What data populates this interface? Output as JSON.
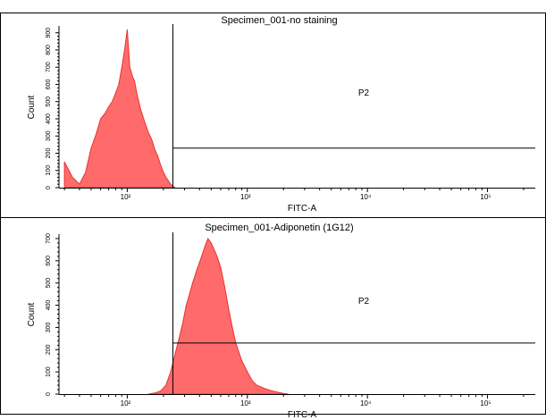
{
  "chart_data": [
    {
      "type": "area",
      "title": "Specimen_001-no staining",
      "xlabel": "FITC-A",
      "ylabel": "Count",
      "x_scale": "log",
      "xlim": [
        27,
        250000
      ],
      "ylim": [
        0,
        940
      ],
      "yticks": [
        0,
        100,
        200,
        300,
        400,
        500,
        600,
        700,
        800,
        900
      ],
      "xticks": [
        {
          "value": 100,
          "label": "10²"
        },
        {
          "value": 1000,
          "label": "10³"
        },
        {
          "value": 10000,
          "label": "10⁴"
        },
        {
          "value": 100000,
          "label": "10⁵"
        }
      ],
      "series": [
        {
          "x": [
            30,
            35,
            40,
            45,
            50,
            55,
            60,
            65,
            70,
            75,
            80,
            85,
            90,
            95,
            100,
            105,
            110,
            115,
            120,
            130,
            140,
            150,
            160,
            170,
            180,
            190,
            200,
            210,
            220,
            230,
            240,
            250
          ],
          "values": [
            150,
            60,
            20,
            90,
            230,
            310,
            400,
            430,
            470,
            500,
            550,
            600,
            700,
            800,
            920,
            700,
            650,
            620,
            550,
            450,
            380,
            320,
            280,
            220,
            180,
            130,
            90,
            60,
            40,
            20,
            8,
            0
          ],
          "color": "#ff6b6b"
        }
      ],
      "gate": {
        "name": "P2",
        "x_start": 240,
        "x_end": 250000,
        "y_level": 230
      }
    },
    {
      "type": "area",
      "title": "Specimen_001-Adiponetin (1G12)",
      "xlabel": "FITC-A",
      "ylabel": "Count",
      "x_scale": "log",
      "xlim": [
        27,
        250000
      ],
      "ylim": [
        0,
        720
      ],
      "yticks": [
        0,
        100,
        200,
        300,
        400,
        500,
        600,
        700
      ],
      "xticks": [
        {
          "value": 100,
          "label": "10²"
        },
        {
          "value": 1000,
          "label": "10³"
        },
        {
          "value": 10000,
          "label": "10⁴"
        },
        {
          "value": 100000,
          "label": "10⁵"
        }
      ],
      "series": [
        {
          "x": [
            150,
            170,
            190,
            210,
            230,
            250,
            270,
            290,
            310,
            330,
            350,
            380,
            410,
            440,
            470,
            500,
            530,
            560,
            600,
            650,
            700,
            750,
            800,
            900,
            1000,
            1100,
            1200,
            1400,
            1600,
            1800,
            2000,
            2200
          ],
          "values": [
            0,
            5,
            15,
            40,
            100,
            180,
            250,
            320,
            400,
            450,
            500,
            560,
            610,
            660,
            700,
            680,
            650,
            620,
            570,
            480,
            380,
            300,
            230,
            150,
            100,
            60,
            40,
            25,
            15,
            8,
            3,
            0
          ],
          "color": "#ff6b6b"
        }
      ],
      "gate": {
        "name": "P2",
        "x_start": 240,
        "x_end": 250000,
        "y_level": 230
      }
    }
  ]
}
